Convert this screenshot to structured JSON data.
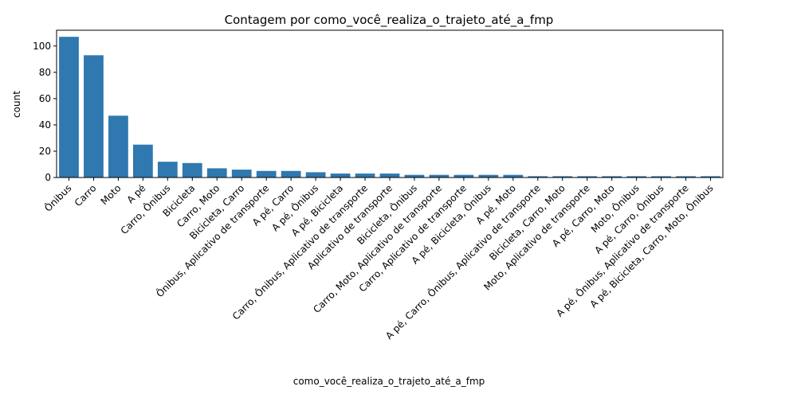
{
  "chart_data": {
    "type": "bar",
    "title": "Contagem por como_você_realiza_o_trajeto_até_a_fmp",
    "xlabel": "como_você_realiza_o_trajeto_até_a_fmp",
    "ylabel": "count",
    "ylim": [
      0,
      112
    ],
    "yticks": [
      0,
      20,
      40,
      60,
      80,
      100
    ],
    "grid": false,
    "bar_color": "#2f78b0",
    "categories": [
      "Ônibus",
      "Carro",
      "Moto",
      "A pé",
      "Carro, Ônibus",
      "Bicicleta",
      "Carro, Moto",
      "Bicicleta, Carro",
      "Ônibus, Aplicativo de transporte",
      "A pé, Carro",
      "A pé, Ônibus",
      "A pé, Bicicleta",
      "Carro, Ônibus, Aplicativo de transporte",
      "Aplicativo de transporte",
      "Bicicleta, Ônibus",
      "Carro, Moto, Aplicativo de transporte",
      "Carro, Aplicativo de transporte",
      "A pé, Bicicleta, Ônibus",
      "A pé, Moto",
      "A pé, Carro, Ônibus, Aplicativo de transporte",
      "Bicicleta, Carro, Moto",
      "Moto, Aplicativo de transporte",
      "A pé, Carro, Moto",
      "Moto, Ônibus",
      "A pé, Carro, Ônibus",
      "A pé, Ônibus, Aplicativo de transporte",
      "A pé, Bicicleta, Carro, Moto, Ônibus"
    ],
    "values": [
      107,
      93,
      47,
      25,
      12,
      11,
      7,
      6,
      5,
      5,
      4,
      3,
      3,
      3,
      2,
      2,
      2,
      2,
      2,
      1,
      1,
      1,
      1,
      1,
      1,
      1,
      1
    ]
  }
}
